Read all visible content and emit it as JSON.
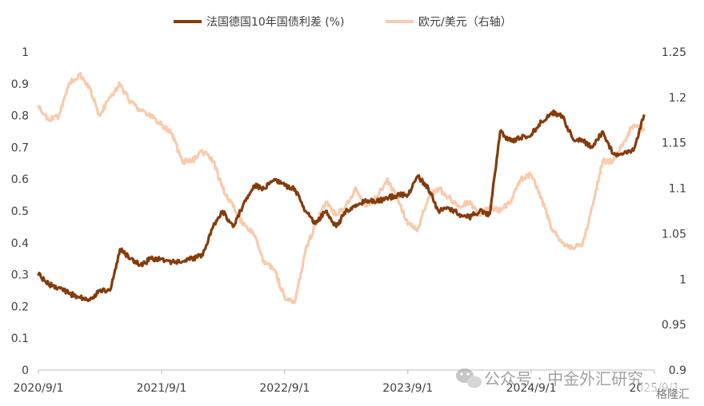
{
  "chart_data": {
    "type": "line",
    "legend": {
      "placement": "top-center"
    },
    "grid": false,
    "x": {
      "tick_labels": [
        "2020/9/1",
        "2021/9/1",
        "2022/9/1",
        "2023/9/1",
        "2024/9/1",
        "2025/9/1"
      ],
      "range": [
        "2020/9/1",
        "2025/9/1"
      ]
    },
    "y_left": {
      "ticks": [
        "0",
        "0.1",
        "0.2",
        "0.3",
        "0.4",
        "0.5",
        "0.6",
        "0.7",
        "0.8",
        "0.9",
        "1"
      ],
      "ylim": [
        0,
        1
      ]
    },
    "y_right": {
      "ticks": [
        "0.9",
        "0.95",
        "1",
        "1.05",
        "1.1",
        "1.15",
        "1.2",
        "1.25"
      ],
      "ylim": [
        0.9,
        1.25
      ]
    },
    "series": [
      {
        "name": "法国德国10年国债利差 (%)",
        "axis": "left",
        "color": "#843C0C",
        "points": [
          [
            "2020/9/1",
            0.3
          ],
          [
            "2020/10/1",
            0.27
          ],
          [
            "2020/11/1",
            0.26
          ],
          [
            "2020/12/1",
            0.24
          ],
          [
            "2021/1/1",
            0.23
          ],
          [
            "2021/2/1",
            0.22
          ],
          [
            "2021/3/1",
            0.25
          ],
          [
            "2021/4/1",
            0.25
          ],
          [
            "2021/5/1",
            0.38
          ],
          [
            "2021/6/1",
            0.35
          ],
          [
            "2021/7/1",
            0.33
          ],
          [
            "2021/8/1",
            0.35
          ],
          [
            "2021/9/1",
            0.35
          ],
          [
            "2021/10/1",
            0.34
          ],
          [
            "2021/11/1",
            0.34
          ],
          [
            "2021/12/1",
            0.35
          ],
          [
            "2022/1/1",
            0.36
          ],
          [
            "2022/2/1",
            0.45
          ],
          [
            "2022/3/1",
            0.5
          ],
          [
            "2022/4/1",
            0.45
          ],
          [
            "2022/5/1",
            0.52
          ],
          [
            "2022/6/1",
            0.58
          ],
          [
            "2022/7/1",
            0.57
          ],
          [
            "2022/8/1",
            0.6
          ],
          [
            "2022/9/1",
            0.58
          ],
          [
            "2022/10/1",
            0.57
          ],
          [
            "2022/11/1",
            0.5
          ],
          [
            "2022/12/1",
            0.46
          ],
          [
            "2023/1/1",
            0.5
          ],
          [
            "2023/2/1",
            0.45
          ],
          [
            "2023/3/1",
            0.5
          ],
          [
            "2023/4/1",
            0.52
          ],
          [
            "2023/5/1",
            0.53
          ],
          [
            "2023/6/1",
            0.53
          ],
          [
            "2023/7/1",
            0.54
          ],
          [
            "2023/8/1",
            0.55
          ],
          [
            "2023/9/1",
            0.55
          ],
          [
            "2023/10/1",
            0.61
          ],
          [
            "2023/11/1",
            0.57
          ],
          [
            "2023/12/1",
            0.5
          ],
          [
            "2024/1/1",
            0.51
          ],
          [
            "2024/2/1",
            0.49
          ],
          [
            "2024/3/1",
            0.48
          ],
          [
            "2024/4/1",
            0.5
          ],
          [
            "2024/5/1",
            0.49
          ],
          [
            "2024/6/1",
            0.75
          ],
          [
            "2024/7/1",
            0.72
          ],
          [
            "2024/8/1",
            0.73
          ],
          [
            "2024/9/1",
            0.74
          ],
          [
            "2024/10/1",
            0.78
          ],
          [
            "2024/11/1",
            0.81
          ],
          [
            "2024/12/1",
            0.8
          ],
          [
            "2025/1/1",
            0.73
          ],
          [
            "2025/2/1",
            0.72
          ],
          [
            "2025/3/1",
            0.7
          ],
          [
            "2025/4/1",
            0.75
          ],
          [
            "2025/5/1",
            0.68
          ],
          [
            "2025/6/1",
            0.68
          ],
          [
            "2025/7/1",
            0.69
          ],
          [
            "2025/8/1",
            0.8
          ]
        ]
      },
      {
        "name": "欧元/美元（右轴）",
        "axis": "right",
        "color": "#F8CBAD",
        "points": [
          [
            "2020/9/1",
            1.19
          ],
          [
            "2020/10/1",
            1.175
          ],
          [
            "2020/11/1",
            1.18
          ],
          [
            "2020/12/1",
            1.215
          ],
          [
            "2021/1/1",
            1.225
          ],
          [
            "2021/2/1",
            1.21
          ],
          [
            "2021/3/1",
            1.18
          ],
          [
            "2021/4/1",
            1.2
          ],
          [
            "2021/5/1",
            1.215
          ],
          [
            "2021/6/1",
            1.195
          ],
          [
            "2021/7/1",
            1.185
          ],
          [
            "2021/8/1",
            1.18
          ],
          [
            "2021/9/1",
            1.17
          ],
          [
            "2021/10/1",
            1.16
          ],
          [
            "2021/11/1",
            1.13
          ],
          [
            "2021/12/1",
            1.13
          ],
          [
            "2022/1/1",
            1.14
          ],
          [
            "2022/2/1",
            1.13
          ],
          [
            "2022/3/1",
            1.1
          ],
          [
            "2022/4/1",
            1.08
          ],
          [
            "2022/5/1",
            1.06
          ],
          [
            "2022/6/1",
            1.05
          ],
          [
            "2022/7/1",
            1.02
          ],
          [
            "2022/8/1",
            1.01
          ],
          [
            "2022/9/1",
            0.98
          ],
          [
            "2022/10/1",
            0.975
          ],
          [
            "2022/11/1",
            1.03
          ],
          [
            "2022/12/1",
            1.06
          ],
          [
            "2023/1/1",
            1.085
          ],
          [
            "2023/2/1",
            1.07
          ],
          [
            "2023/3/1",
            1.08
          ],
          [
            "2023/4/1",
            1.1
          ],
          [
            "2023/5/1",
            1.08
          ],
          [
            "2023/6/1",
            1.09
          ],
          [
            "2023/7/1",
            1.11
          ],
          [
            "2023/8/1",
            1.09
          ],
          [
            "2023/9/1",
            1.06
          ],
          [
            "2023/10/1",
            1.055
          ],
          [
            "2023/11/1",
            1.09
          ],
          [
            "2023/12/1",
            1.1
          ],
          [
            "2024/1/1",
            1.09
          ],
          [
            "2024/2/1",
            1.08
          ],
          [
            "2024/3/1",
            1.085
          ],
          [
            "2024/4/1",
            1.07
          ],
          [
            "2024/5/1",
            1.08
          ],
          [
            "2024/6/1",
            1.075
          ],
          [
            "2024/7/1",
            1.085
          ],
          [
            "2024/8/1",
            1.11
          ],
          [
            "2024/9/1",
            1.115
          ],
          [
            "2024/10/1",
            1.09
          ],
          [
            "2024/11/1",
            1.055
          ],
          [
            "2024/12/1",
            1.04
          ],
          [
            "2025/1/1",
            1.035
          ],
          [
            "2025/2/1",
            1.04
          ],
          [
            "2025/3/1",
            1.08
          ],
          [
            "2025/4/1",
            1.13
          ],
          [
            "2025/5/1",
            1.13
          ],
          [
            "2025/6/1",
            1.15
          ],
          [
            "2025/7/1",
            1.17
          ],
          [
            "2025/8/1",
            1.165
          ]
        ]
      }
    ]
  },
  "watermark": {
    "channel": "公众号 · 中金外汇研究",
    "badge": "格隆汇"
  }
}
